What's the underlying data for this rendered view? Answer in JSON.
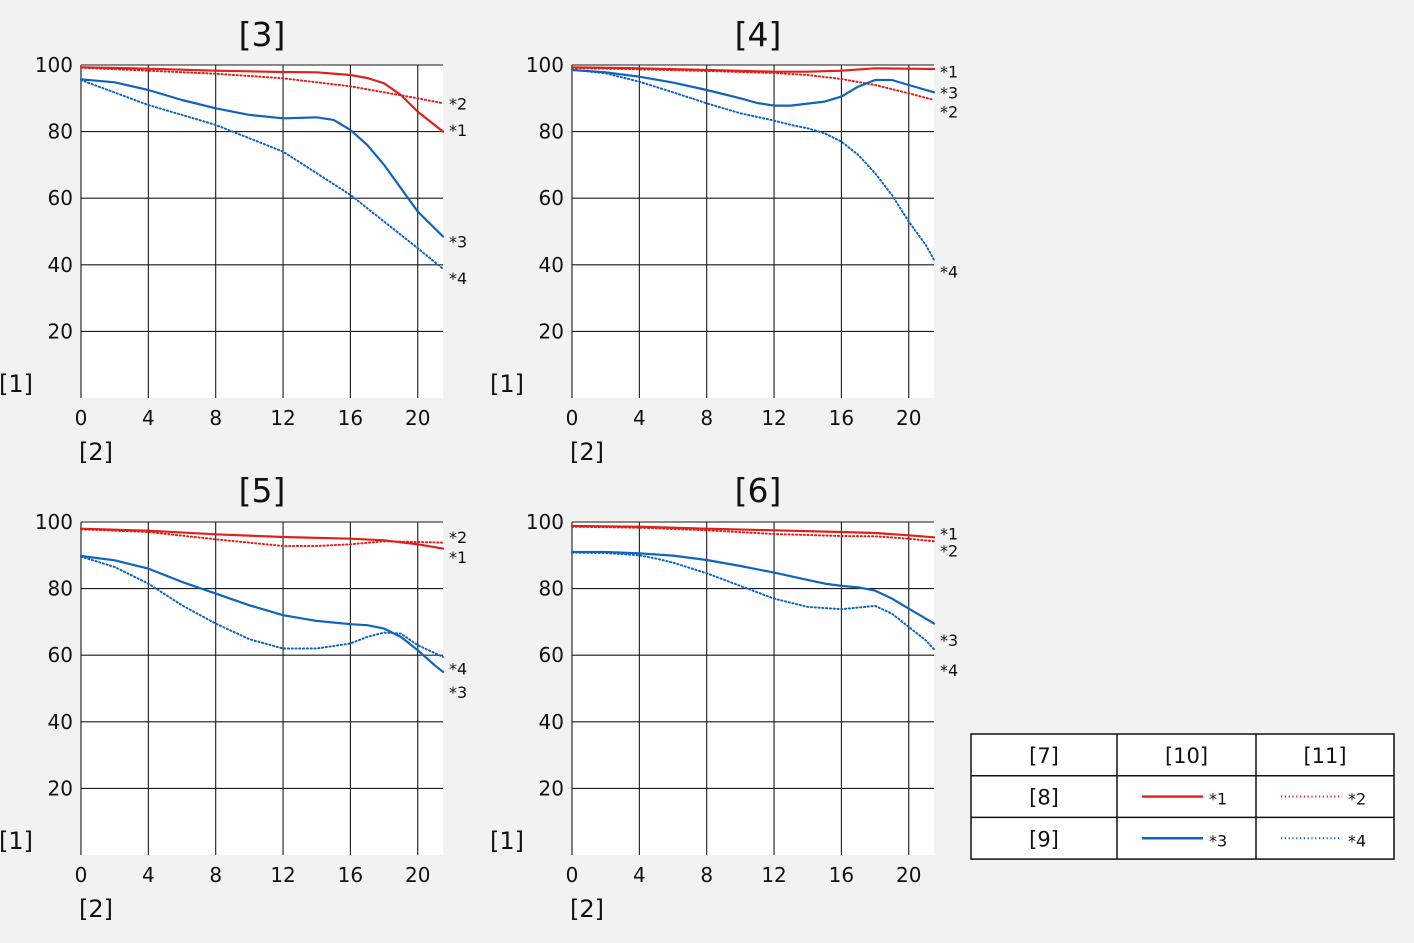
{
  "colors": {
    "red": "#e0201b",
    "blue": "#0f64bf",
    "grid": "#1a1a1a",
    "background": "#f2f2f2"
  },
  "chart_data": [
    {
      "type": "line",
      "title": "[3]",
      "ylabel": "[1]",
      "xlabel": "[2]",
      "xlim": [
        0,
        21.5
      ],
      "ylim": [
        0,
        100
      ],
      "xticks": [
        0,
        4,
        8,
        12,
        16,
        20
      ],
      "yticks": [
        20,
        40,
        60,
        80,
        100
      ],
      "ytick_labels": [
        "20",
        "40",
        "60",
        "80",
        "100"
      ],
      "grid": true,
      "series": [
        {
          "name": "*1",
          "color": "red",
          "style": "solid",
          "x": [
            0,
            4,
            8,
            12,
            14,
            16,
            17,
            18,
            19,
            20,
            21.5
          ],
          "y": [
            99.3,
            98.9,
            98.3,
            97.9,
            97.8,
            97.0,
            96.1,
            94.5,
            91.0,
            86.0,
            80.0
          ]
        },
        {
          "name": "*2",
          "color": "red",
          "style": "dotted",
          "x": [
            0,
            4,
            8,
            12,
            16,
            20,
            21.5
          ],
          "y": [
            99.2,
            98.3,
            97.4,
            96.0,
            93.6,
            90.0,
            88.5
          ]
        },
        {
          "name": "*3",
          "color": "blue",
          "style": "solid",
          "x": [
            0,
            2,
            4,
            6,
            8,
            10,
            12,
            13,
            14,
            15,
            16,
            17,
            18,
            19,
            20,
            21,
            21.5
          ],
          "y": [
            95.7,
            94.8,
            92.5,
            89.5,
            87.0,
            85.0,
            84.0,
            84.1,
            84.3,
            83.5,
            80.5,
            76.0,
            70.0,
            63.0,
            56.0,
            51.0,
            48.5
          ]
        },
        {
          "name": "*4",
          "color": "blue",
          "style": "dotted",
          "x": [
            0,
            4,
            8,
            12,
            16,
            20,
            21.5
          ],
          "y": [
            95.5,
            88.0,
            82.0,
            74.0,
            61.0,
            45.0,
            38.8
          ]
        }
      ],
      "curve_labels": [
        {
          "text": "*2",
          "y": 88.5
        },
        {
          "text": "*1",
          "y": 80.5
        },
        {
          "text": "*3",
          "y": 47.0
        },
        {
          "text": "*4",
          "y": 36.0
        }
      ]
    },
    {
      "type": "line",
      "title": "[4]",
      "ylabel": "[1]",
      "xlabel": "[2]",
      "xlim": [
        0,
        21.5
      ],
      "ylim": [
        0,
        100
      ],
      "xticks": [
        0,
        4,
        8,
        12,
        16,
        20
      ],
      "yticks": [
        20,
        40,
        60,
        80,
        100
      ],
      "ytick_labels": [
        "20",
        "40",
        "60",
        "80",
        "100"
      ],
      "grid": true,
      "series": [
        {
          "name": "*1",
          "color": "red",
          "style": "solid",
          "x": [
            0,
            4,
            8,
            12,
            14,
            16,
            18,
            20,
            21.5
          ],
          "y": [
            99.3,
            99.0,
            98.5,
            98.0,
            98.0,
            98.3,
            99.0,
            98.9,
            98.8
          ]
        },
        {
          "name": "*2",
          "color": "red",
          "style": "dotted",
          "x": [
            0,
            4,
            8,
            12,
            14,
            16,
            18,
            20,
            21.5
          ],
          "y": [
            99.1,
            98.7,
            98.2,
            97.6,
            97.0,
            95.8,
            94.0,
            91.5,
            89.5
          ]
        },
        {
          "name": "*3",
          "color": "blue",
          "style": "solid",
          "x": [
            0,
            2,
            4,
            6,
            8,
            10,
            11,
            12,
            13,
            14,
            15,
            16,
            17,
            18,
            19,
            20,
            21.5
          ],
          "y": [
            98.5,
            97.8,
            96.5,
            94.7,
            92.5,
            90.0,
            88.6,
            87.8,
            87.8,
            88.4,
            89.0,
            90.5,
            93.5,
            95.5,
            95.5,
            94.0,
            91.8
          ]
        },
        {
          "name": "*4",
          "color": "blue",
          "style": "dotted",
          "x": [
            0,
            2,
            4,
            6,
            8,
            10,
            12,
            13,
            14,
            15,
            16,
            17,
            18,
            19,
            20,
            21,
            21.5
          ],
          "y": [
            98.6,
            97.5,
            95.0,
            91.8,
            88.5,
            85.5,
            83.3,
            82.0,
            81.0,
            79.5,
            77.0,
            73.0,
            67.5,
            61.0,
            53.0,
            46.0,
            41.5
          ]
        }
      ],
      "curve_labels": [
        {
          "text": "*1",
          "y": 98.0
        },
        {
          "text": "*3",
          "y": 91.8
        },
        {
          "text": "*2",
          "y": 86.0
        },
        {
          "text": "*4",
          "y": 38.0
        }
      ]
    },
    {
      "type": "line",
      "title": "[5]",
      "ylabel": "[1]",
      "xlabel": "[2]",
      "xlim": [
        0,
        21.5
      ],
      "ylim": [
        0,
        100
      ],
      "xticks": [
        0,
        4,
        8,
        12,
        16,
        20
      ],
      "yticks": [
        20,
        40,
        60,
        80,
        100
      ],
      "ytick_labels": [
        "20",
        "40",
        "60",
        "80",
        "100"
      ],
      "grid": true,
      "series": [
        {
          "name": "*1",
          "color": "red",
          "style": "solid",
          "x": [
            0,
            4,
            8,
            12,
            16,
            18,
            20,
            21.5
          ],
          "y": [
            98.0,
            97.4,
            96.3,
            95.5,
            95.0,
            94.5,
            93.3,
            92.0
          ]
        },
        {
          "name": "*2",
          "color": "red",
          "style": "dotted",
          "x": [
            0,
            4,
            8,
            12,
            14,
            16,
            18,
            20,
            21.5
          ],
          "y": [
            97.8,
            97.0,
            94.8,
            92.8,
            92.8,
            93.3,
            94.2,
            94.0,
            93.8
          ]
        },
        {
          "name": "*3",
          "color": "blue",
          "style": "solid",
          "x": [
            0,
            2,
            4,
            6,
            8,
            10,
            12,
            14,
            16,
            17,
            18,
            19,
            20,
            21,
            21.5
          ],
          "y": [
            89.8,
            88.5,
            86.0,
            82.0,
            78.5,
            75.0,
            72.0,
            70.3,
            69.3,
            69.0,
            68.0,
            65.5,
            61.5,
            57.0,
            55.0
          ]
        },
        {
          "name": "*4",
          "color": "blue",
          "style": "dotted",
          "x": [
            0,
            2,
            4,
            6,
            8,
            10,
            12,
            14,
            16,
            17,
            18,
            19,
            20,
            21.5
          ],
          "y": [
            89.6,
            86.5,
            81.5,
            75.0,
            69.5,
            64.8,
            62.0,
            62.0,
            63.5,
            65.5,
            66.8,
            66.5,
            63.0,
            59.5
          ]
        }
      ],
      "curve_labels": [
        {
          "text": "*2",
          "y": 95.5
        },
        {
          "text": "*1",
          "y": 89.5
        },
        {
          "text": "*4",
          "y": 56.0
        },
        {
          "text": "*3",
          "y": 49.0
        }
      ]
    },
    {
      "type": "line",
      "title": "[6]",
      "ylabel": "[1]",
      "xlabel": "[2]",
      "xlim": [
        0,
        21.5
      ],
      "ylim": [
        0,
        100
      ],
      "xticks": [
        0,
        4,
        8,
        12,
        16,
        20
      ],
      "yticks": [
        20,
        40,
        60,
        80,
        100
      ],
      "ytick_labels": [
        "20",
        "40",
        "60",
        "80",
        "100"
      ],
      "grid": true,
      "series": [
        {
          "name": "*1",
          "color": "red",
          "style": "solid",
          "x": [
            0,
            4,
            8,
            12,
            16,
            18,
            20,
            21.5
          ],
          "y": [
            98.8,
            98.6,
            98.0,
            97.5,
            97.0,
            96.7,
            96.0,
            95.4
          ]
        },
        {
          "name": "*2",
          "color": "red",
          "style": "dotted",
          "x": [
            0,
            4,
            8,
            12,
            16,
            18,
            20,
            21.5
          ],
          "y": [
            98.6,
            98.3,
            97.5,
            96.4,
            95.8,
            95.7,
            95.0,
            94.2
          ]
        },
        {
          "name": "*3",
          "color": "blue",
          "style": "solid",
          "x": [
            0,
            2,
            4,
            6,
            8,
            10,
            12,
            14,
            15,
            16,
            17,
            18,
            19,
            20,
            21,
            21.5
          ],
          "y": [
            91.0,
            91.0,
            90.6,
            89.9,
            88.6,
            86.8,
            84.8,
            82.6,
            81.5,
            80.8,
            80.4,
            79.4,
            77.0,
            74.0,
            71.0,
            69.5
          ]
        },
        {
          "name": "*4",
          "color": "blue",
          "style": "dotted",
          "x": [
            0,
            2,
            4,
            5,
            6,
            8,
            10,
            12,
            14,
            16,
            17,
            18,
            19,
            20,
            21,
            21.5
          ],
          "y": [
            90.8,
            90.7,
            90.0,
            89.0,
            87.8,
            84.6,
            80.8,
            77.0,
            74.5,
            73.8,
            74.3,
            74.8,
            72.5,
            68.5,
            64.5,
            61.8
          ]
        }
      ],
      "curve_labels": [
        {
          "text": "*1",
          "y": 96.5
        },
        {
          "text": "*2",
          "y": 91.5
        },
        {
          "text": "*3",
          "y": 64.5
        },
        {
          "text": "*4",
          "y": 55.5
        }
      ]
    }
  ],
  "legend": {
    "header": [
      "[7]",
      "[10]",
      "[11]"
    ],
    "rows": [
      {
        "label": "[8]",
        "entries": [
          {
            "text": "*1",
            "color": "red",
            "style": "solid"
          },
          {
            "text": "*2",
            "color": "red",
            "style": "dotted"
          }
        ]
      },
      {
        "label": "[9]",
        "entries": [
          {
            "text": "*3",
            "color": "blue",
            "style": "solid"
          },
          {
            "text": "*4",
            "color": "blue",
            "style": "dotted"
          }
        ]
      }
    ]
  }
}
